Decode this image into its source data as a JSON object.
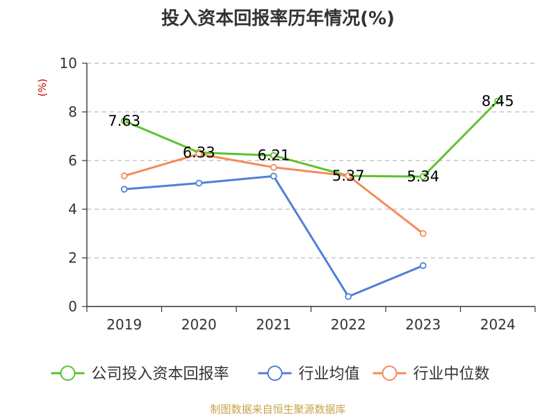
{
  "chart_data": {
    "type": "line",
    "title": "投入资本回报率历年情况(%)",
    "ylabel": "(%)",
    "xlabel": "",
    "categories": [
      "2019",
      "2020",
      "2021",
      "2022",
      "2023",
      "2024"
    ],
    "ylim": [
      0,
      10
    ],
    "yticks": [
      0,
      2,
      4,
      6,
      8,
      10
    ],
    "grid": true,
    "legend_position": "bottom",
    "series": [
      {
        "name": "公司投入资本回报率",
        "color": "#5cc22a",
        "values": [
          7.63,
          6.33,
          6.21,
          5.37,
          5.34,
          8.45
        ],
        "show_labels": true,
        "labels": [
          "7.63",
          "6.33",
          "6.21",
          "5.37",
          "5.34",
          "8.45"
        ]
      },
      {
        "name": "行业均值",
        "color": "#4f7fd8",
        "values": [
          4.82,
          5.07,
          5.36,
          0.41,
          1.68,
          null
        ],
        "show_labels": false
      },
      {
        "name": "行业中位数",
        "color": "#f48b5a",
        "values": [
          5.37,
          6.27,
          5.72,
          5.37,
          3.0,
          null
        ],
        "show_labels": false
      }
    ]
  },
  "footer": {
    "source": "制图数据来自恒生聚源数据库"
  }
}
